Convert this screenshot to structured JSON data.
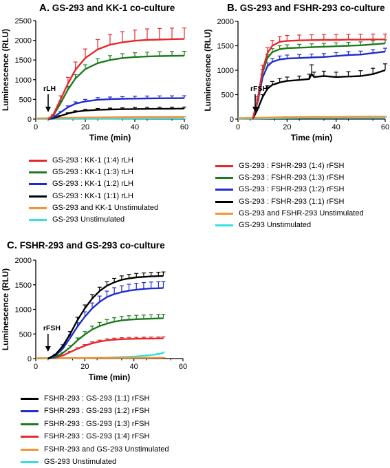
{
  "colors": {
    "red": "#e8262a",
    "green": "#1c7a1c",
    "blue": "#1f2ad0",
    "black": "#000000",
    "orange": "#f29434",
    "cyan": "#35e0e0"
  },
  "chart_data": [
    {
      "type": "line",
      "panel_letter": "A.",
      "title": "GS-293 and KK-1 co-culture",
      "xlabel": "Time (min)",
      "ylabel": "Luminescence (RLU)",
      "xlim": [
        0,
        60
      ],
      "ylim": [
        0,
        2500
      ],
      "xticks": [
        0,
        20,
        40,
        60
      ],
      "yticks": [
        0,
        500,
        1000,
        1500,
        2000,
        2500
      ],
      "annotation": {
        "text": "rLH",
        "x": 5
      },
      "series": [
        {
          "name": "GS-293 : KK-1 (1:4) rLH",
          "color": "red",
          "x": [
            5,
            7,
            10,
            13,
            16,
            20,
            25,
            30,
            35,
            40,
            45,
            50,
            55,
            60
          ],
          "y": [
            0,
            100,
            500,
            900,
            1250,
            1550,
            1770,
            1890,
            1950,
            1990,
            2010,
            2020,
            2030,
            2035
          ],
          "err": [
            0,
            20,
            90,
            160,
            200,
            230,
            250,
            260,
            270,
            270,
            280,
            280,
            280,
            280
          ]
        },
        {
          "name": "GS-293 : KK-1 (1:3) rLH",
          "color": "green",
          "x": [
            5,
            7,
            10,
            13,
            16,
            20,
            25,
            30,
            35,
            40,
            45,
            50,
            55,
            60
          ],
          "y": [
            0,
            80,
            400,
            750,
            1030,
            1270,
            1420,
            1500,
            1550,
            1575,
            1590,
            1600,
            1605,
            1610
          ],
          "err": [
            0,
            15,
            50,
            80,
            100,
            110,
            110,
            110,
            110,
            110,
            110,
            110,
            110,
            110
          ]
        },
        {
          "name": "GS-293 : KK-1 (1:2) rLH",
          "color": "blue",
          "x": [
            5,
            7,
            10,
            13,
            16,
            20,
            25,
            30,
            35,
            40,
            45,
            50,
            55,
            60
          ],
          "y": [
            0,
            40,
            170,
            300,
            390,
            450,
            490,
            505,
            515,
            520,
            525,
            528,
            530,
            532
          ],
          "err": [
            0,
            10,
            25,
            35,
            45,
            50,
            55,
            55,
            55,
            60,
            60,
            60,
            60,
            60
          ]
        },
        {
          "name": "GS-293 : KK-1 (1:1) rLH",
          "color": "black",
          "x": [
            5,
            7,
            10,
            13,
            16,
            20,
            25,
            30,
            35,
            40,
            45,
            50,
            55,
            60
          ],
          "y": [
            0,
            20,
            80,
            140,
            185,
            215,
            235,
            245,
            250,
            255,
            258,
            260,
            262,
            265
          ],
          "err": [
            0,
            5,
            15,
            20,
            25,
            30,
            35,
            35,
            35,
            40,
            40,
            40,
            40,
            40
          ]
        },
        {
          "name": "GS-293 and KK-1 Unstimulated",
          "color": "orange",
          "x": [
            0,
            10,
            20,
            30,
            40,
            50,
            60
          ],
          "y": [
            20,
            30,
            40,
            45,
            50,
            55,
            55
          ],
          "err": [
            0,
            5,
            5,
            5,
            5,
            5,
            5
          ]
        },
        {
          "name": "GS-293 Unstimulated",
          "color": "cyan",
          "x": [
            0,
            10,
            20,
            30,
            40,
            50,
            60
          ],
          "y": [
            5,
            8,
            10,
            12,
            14,
            15,
            15
          ],
          "err": [
            0,
            2,
            2,
            2,
            2,
            2,
            2
          ]
        }
      ]
    },
    {
      "type": "line",
      "panel_letter": "B.",
      "title": "GS-293 and FSHR-293 co-culture",
      "xlabel": "Time (min)",
      "ylabel": "Luminescence (RLU)",
      "xlim": [
        0,
        60
      ],
      "ylim": [
        0,
        2000
      ],
      "xticks": [
        0,
        20,
        40,
        60
      ],
      "yticks": [
        0,
        500,
        1000,
        1500,
        2000
      ],
      "annotation": {
        "text": "rFSH",
        "x": 7
      },
      "series": [
        {
          "name": "GS-293 : FSHR-293 (1:4) rFSH",
          "color": "red",
          "x": [
            6,
            8,
            10,
            12,
            14,
            17,
            20,
            25,
            30,
            35,
            40,
            45,
            50,
            55,
            60
          ],
          "y": [
            0,
            400,
            1000,
            1350,
            1500,
            1580,
            1600,
            1610,
            1615,
            1620,
            1620,
            1625,
            1625,
            1630,
            1630
          ],
          "err": [
            0,
            60,
            100,
            110,
            110,
            110,
            110,
            110,
            110,
            110,
            110,
            110,
            110,
            110,
            110
          ]
        },
        {
          "name": "GS-293 : FSHR-293 (1:3) rFSH",
          "color": "green",
          "x": [
            6,
            8,
            10,
            12,
            14,
            17,
            20,
            25,
            30,
            35,
            40,
            45,
            50,
            55,
            60
          ],
          "y": [
            0,
            380,
            950,
            1250,
            1370,
            1430,
            1450,
            1460,
            1470,
            1480,
            1490,
            1500,
            1510,
            1530,
            1550
          ],
          "err": [
            0,
            50,
            70,
            70,
            70,
            70,
            70,
            70,
            70,
            70,
            70,
            70,
            70,
            70,
            70
          ]
        },
        {
          "name": "GS-293 : FSHR-293 (1:2) rFSH",
          "color": "blue",
          "x": [
            6,
            8,
            10,
            12,
            14,
            17,
            20,
            25,
            30,
            35,
            40,
            45,
            50,
            55,
            60
          ],
          "y": [
            0,
            350,
            850,
            1080,
            1170,
            1220,
            1240,
            1250,
            1260,
            1270,
            1290,
            1310,
            1320,
            1350,
            1380
          ],
          "err": [
            0,
            40,
            60,
            70,
            70,
            70,
            70,
            70,
            70,
            70,
            70,
            70,
            70,
            70,
            70
          ]
        },
        {
          "name": "GS-293 : FSHR-293 (1:1) rFSH",
          "color": "black",
          "x": [
            6,
            8,
            10,
            12,
            14,
            17,
            20,
            25,
            29,
            30,
            31,
            35,
            40,
            45,
            50,
            55,
            60
          ],
          "y": [
            0,
            200,
            450,
            620,
            700,
            750,
            780,
            800,
            820,
            920,
            860,
            880,
            860,
            870,
            880,
            920,
            1000
          ],
          "err": [
            0,
            30,
            50,
            60,
            70,
            80,
            80,
            80,
            100,
            190,
            100,
            100,
            100,
            100,
            110,
            120,
            130
          ]
        },
        {
          "name": "GS-293 and FSHR-293 Unstimulated",
          "color": "orange",
          "x": [
            0,
            10,
            20,
            30,
            40,
            50,
            60
          ],
          "y": [
            20,
            30,
            40,
            45,
            45,
            50,
            50
          ],
          "err": [
            0,
            5,
            5,
            5,
            5,
            5,
            5
          ]
        },
        {
          "name": "GS-293 Unstimulated",
          "color": "cyan",
          "x": [
            0,
            10,
            20,
            30,
            40,
            50,
            60
          ],
          "y": [
            10,
            15,
            20,
            25,
            30,
            30,
            30
          ],
          "err": [
            0,
            3,
            3,
            3,
            3,
            3,
            3
          ]
        }
      ]
    },
    {
      "type": "line",
      "panel_letter": "C.",
      "title": "FSHR-293 and GS-293 co-culture",
      "xlabel": "Time (min)",
      "ylabel": "Luminescence (RLU)",
      "xlim": [
        0,
        60
      ],
      "ylim": [
        0,
        2000
      ],
      "xticks": [
        0,
        20,
        40,
        60
      ],
      "yticks": [
        0,
        500,
        1000,
        1500,
        2000
      ],
      "annotation": {
        "text": "rFSH",
        "x": 5
      },
      "series": [
        {
          "name": "FSHR-293 : GS-293 (1:1) rFSH",
          "color": "black",
          "x": [
            5,
            8,
            11,
            14,
            17,
            20,
            23,
            26,
            29,
            32,
            35,
            38,
            41,
            44,
            47,
            50,
            52
          ],
          "y": [
            0,
            80,
            250,
            500,
            780,
            1020,
            1220,
            1370,
            1480,
            1550,
            1600,
            1630,
            1650,
            1660,
            1670,
            1675,
            1680
          ],
          "err": [
            0,
            10,
            30,
            50,
            60,
            70,
            80,
            80,
            80,
            80,
            80,
            80,
            80,
            80,
            80,
            80,
            80
          ]
        },
        {
          "name": "FSHR-293 : GS-293 (1:2) rFSH",
          "color": "blue",
          "x": [
            5,
            8,
            11,
            14,
            17,
            20,
            23,
            26,
            29,
            32,
            35,
            38,
            41,
            44,
            47,
            50,
            52
          ],
          "y": [
            0,
            60,
            200,
            420,
            650,
            850,
            1020,
            1150,
            1250,
            1310,
            1350,
            1380,
            1400,
            1415,
            1425,
            1430,
            1435
          ],
          "err": [
            0,
            10,
            30,
            60,
            80,
            100,
            110,
            120,
            120,
            130,
            130,
            130,
            130,
            130,
            130,
            130,
            130
          ]
        },
        {
          "name": "FSHR-293 : GS-293 (1:3) rFSH",
          "color": "green",
          "x": [
            5,
            8,
            11,
            14,
            17,
            20,
            23,
            26,
            29,
            32,
            35,
            38,
            41,
            44,
            47,
            50,
            52
          ],
          "y": [
            0,
            30,
            110,
            230,
            370,
            490,
            590,
            660,
            710,
            750,
            775,
            790,
            800,
            805,
            810,
            815,
            820
          ],
          "err": [
            0,
            5,
            20,
            35,
            50,
            60,
            70,
            75,
            80,
            80,
            80,
            80,
            80,
            80,
            80,
            80,
            80
          ]
        },
        {
          "name": "FSHR-293 : GS-293 (1:4) rFSH",
          "color": "red",
          "x": [
            5,
            8,
            11,
            14,
            17,
            20,
            23,
            26,
            29,
            32,
            35,
            38,
            41,
            44,
            47,
            50,
            52
          ],
          "y": [
            0,
            20,
            60,
            130,
            200,
            260,
            310,
            345,
            370,
            385,
            395,
            400,
            403,
            405,
            407,
            408,
            410
          ],
          "err": [
            0,
            5,
            10,
            15,
            20,
            25,
            30,
            30,
            30,
            30,
            30,
            30,
            30,
            30,
            30,
            30,
            30
          ]
        },
        {
          "name": "FSHR-293 and GS-293 Unstimulated",
          "color": "orange",
          "x": [
            0,
            10,
            20,
            30,
            40,
            50,
            52
          ],
          "y": [
            10,
            10,
            12,
            14,
            16,
            18,
            18
          ],
          "err": [
            0,
            2,
            2,
            2,
            2,
            2,
            2
          ]
        },
        {
          "name": "GS-293 Unstimulated",
          "color": "cyan",
          "x": [
            0,
            10,
            20,
            30,
            40,
            45,
            50,
            52
          ],
          "y": [
            0,
            5,
            10,
            20,
            40,
            60,
            90,
            110
          ],
          "err": [
            0,
            2,
            3,
            5,
            8,
            12,
            18,
            22
          ]
        }
      ]
    }
  ]
}
